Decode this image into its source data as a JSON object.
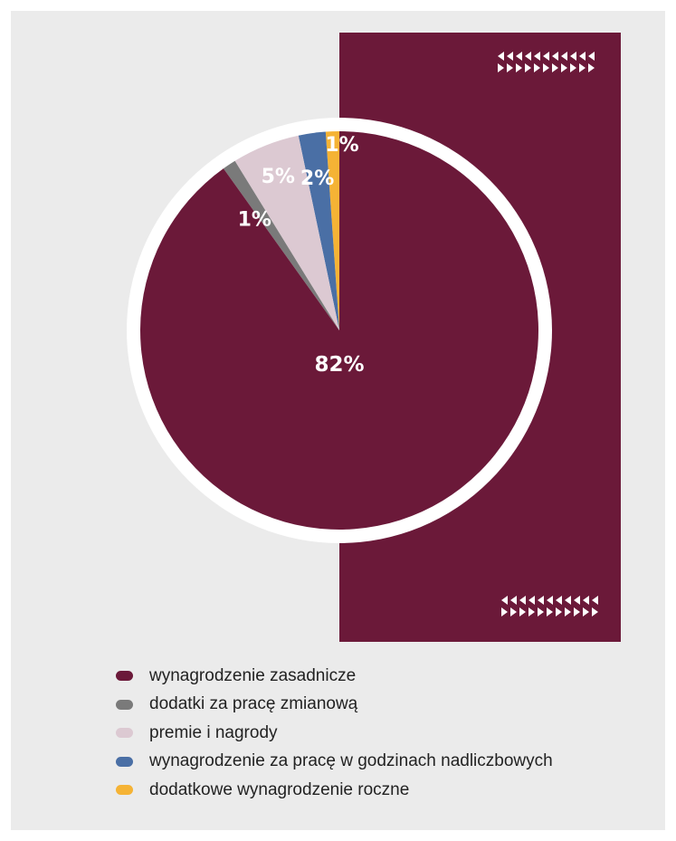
{
  "chart_data": {
    "type": "pie",
    "title": "",
    "categories": [
      "wynagrodzenie zasadnicze",
      "dodatki za pracę zmianową",
      "premie i nagrody",
      "wynagrodzenie za pracę w godzinach nadliczbowych",
      "dodatkowe wynagrodzenie roczne"
    ],
    "values": [
      82,
      1,
      5,
      2,
      1
    ],
    "data_labels": [
      "82%",
      "1%",
      "5%",
      "2%",
      "1%"
    ],
    "colors": [
      "#6b1939",
      "#7a7a7a",
      "#dcc9d2",
      "#4a6fa5",
      "#f5b335"
    ],
    "legend_position": "bottom-left"
  },
  "decor": {
    "panel_color": "#6b1939",
    "ring_color": "#ffffff",
    "chevron_icon": "chevron-pattern-icon"
  }
}
